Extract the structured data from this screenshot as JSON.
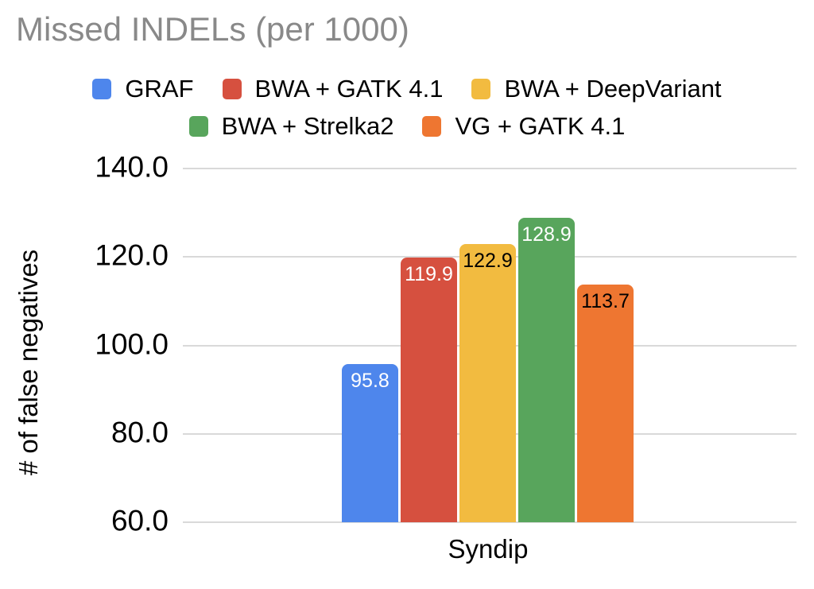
{
  "title": "Missed INDELs (per 1000)",
  "legend": {
    "rows": [
      [
        {
          "label": "GRAF",
          "color": "#4e86ec"
        },
        {
          "label": "BWA + GATK 4.1",
          "color": "#d6503f"
        },
        {
          "label": "BWA + DeepVariant",
          "color": "#f2bb40"
        }
      ],
      [
        {
          "label": "BWA + Strelka2",
          "color": "#58a55c"
        },
        {
          "label": "VG + GATK 4.1",
          "color": "#ee7631"
        }
      ]
    ]
  },
  "chart_data": {
    "type": "bar",
    "title": "Missed INDELs (per 1000)",
    "categories": [
      "Syndip"
    ],
    "series": [
      {
        "name": "GRAF",
        "values": [
          95.8
        ],
        "label": "95.8",
        "color": "#4e86ec",
        "label_color": "#ffffff"
      },
      {
        "name": "BWA + GATK 4.1",
        "values": [
          119.9
        ],
        "label": "119.9",
        "color": "#d6503f",
        "label_color": "#ffffff"
      },
      {
        "name": "BWA + DeepVariant",
        "values": [
          122.9
        ],
        "label": "122.9",
        "color": "#f2bb40",
        "label_color": "#000000"
      },
      {
        "name": "BWA + Strelka2",
        "values": [
          128.9
        ],
        "label": "128.9",
        "color": "#58a55c",
        "label_color": "#ffffff"
      },
      {
        "name": "VG + GATK 4.1",
        "values": [
          113.7
        ],
        "label": "113.7",
        "color": "#ee7631",
        "label_color": "#000000"
      }
    ],
    "xlabel": "",
    "ylabel": "# of false negatives",
    "ylim": [
      60,
      140
    ],
    "yticks": [
      140,
      120,
      100,
      80,
      60
    ],
    "ytick_labels": [
      "140.0",
      "120.0",
      "100.0",
      "80.0",
      "60.0"
    ],
    "grid": true,
    "legend_position": "top"
  },
  "colors": {
    "background": "#ffffff",
    "grid": "#d9d9d9",
    "title_text": "#898989",
    "axis_text": "#000000"
  }
}
